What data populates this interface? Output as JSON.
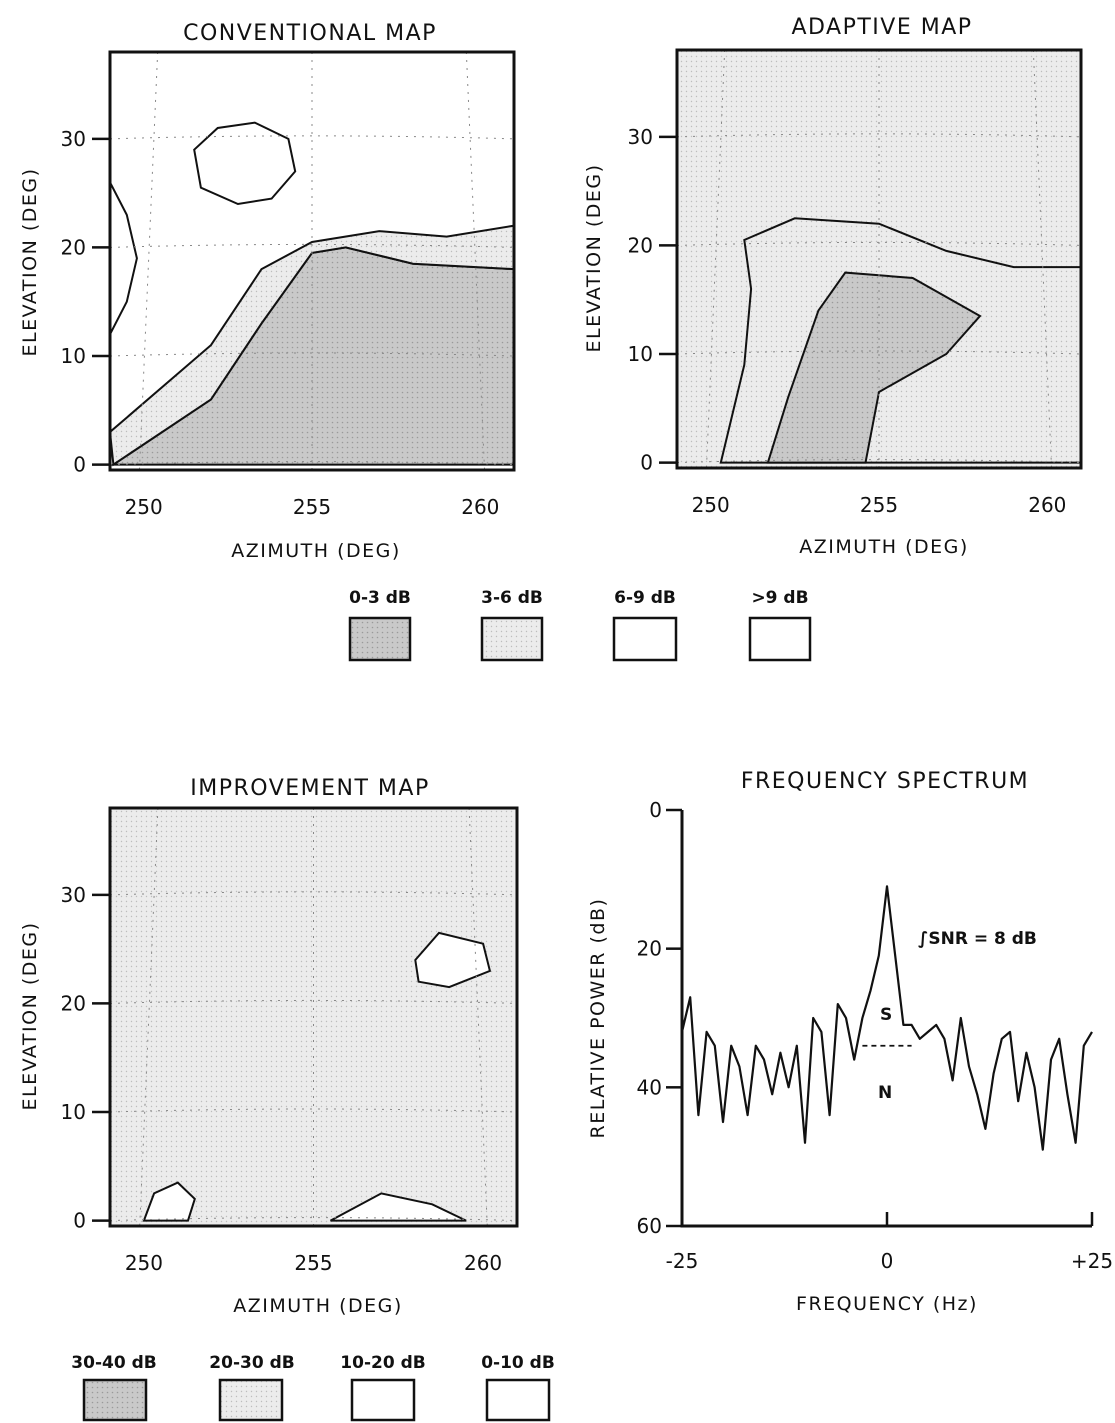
{
  "figure": {
    "top_legend": {
      "items": [
        {
          "label": "0-3 dB",
          "fill": "#c9c9c9"
        },
        {
          "label": "3-6 dB",
          "fill": "#ececec"
        },
        {
          "label": "6-9 dB",
          "fill": "#ffffff"
        },
        {
          "label": ">9 dB",
          "fill": "#ffffff"
        }
      ]
    },
    "bottom_legend": {
      "items": [
        {
          "label": "30-40 dB",
          "fill": "#c9c9c9"
        },
        {
          "label": "20-30 dB",
          "fill": "#ececec"
        },
        {
          "label": "10-20 dB",
          "fill": "#ffffff"
        },
        {
          "label": "0-10 dB",
          "fill": "#ffffff"
        }
      ]
    }
  },
  "chart_data": [
    {
      "type": "heatmap",
      "title": "CONVENTIONAL MAP",
      "xlabel": "AZIMUTH (DEG)",
      "ylabel": "ELEVATION (DEG)",
      "xlim": [
        249,
        261
      ],
      "ylim": [
        -0.5,
        38
      ],
      "xticks": [
        "250",
        "255",
        "260"
      ],
      "yticks": [
        "0",
        "10",
        "20",
        "30"
      ],
      "levels": [
        "0-3 dB",
        "3-6 dB",
        "6-9 dB",
        ">9 dB"
      ],
      "contours": [
        {
          "level": "0-3 dB",
          "boundary": [
            [
              249.1,
              0
            ],
            [
              252,
              6
            ],
            [
              253.5,
              13
            ],
            [
              255,
              19.5
            ],
            [
              256,
              20
            ],
            [
              258,
              18.5
            ],
            [
              261,
              18
            ],
            [
              261,
              0
            ]
          ]
        },
        {
          "level": "3-6 dB",
          "boundary": [
            [
              249,
              3
            ],
            [
              252,
              11
            ],
            [
              253.5,
              18
            ],
            [
              255,
              20.5
            ],
            [
              257,
              21.5
            ],
            [
              259,
              21
            ],
            [
              261,
              22
            ],
            [
              261,
              18
            ],
            [
              258,
              18.5
            ],
            [
              256,
              20
            ],
            [
              255,
              19.5
            ],
            [
              253.5,
              13
            ],
            [
              252,
              6
            ],
            [
              249.1,
              0
            ]
          ]
        },
        {
          "level": ">9 dB",
          "boundary": [
            [
              249,
              12
            ],
            [
              249.5,
              15
            ],
            [
              249.8,
              19
            ],
            [
              249.5,
              23
            ],
            [
              249,
              26
            ]
          ]
        },
        {
          "level": ">9 dB",
          "boundary": [
            [
              251.5,
              29
            ],
            [
              252.2,
              31
            ],
            [
              253.3,
              31.5
            ],
            [
              254.3,
              30
            ],
            [
              254.5,
              27
            ],
            [
              253.8,
              24.5
            ],
            [
              252.8,
              24
            ],
            [
              251.7,
              25.5
            ]
          ]
        }
      ]
    },
    {
      "type": "heatmap",
      "title": "ADAPTIVE MAP",
      "xlabel": "AZIMUTH (DEG)",
      "ylabel": "ELEVATION (DEG)",
      "xlim": [
        249,
        261
      ],
      "ylim": [
        -0.5,
        38
      ],
      "xticks": [
        "250",
        "255",
        "260"
      ],
      "yticks": [
        "0",
        "10",
        "20",
        "30"
      ],
      "levels": [
        "0-3 dB",
        "3-6 dB",
        "6-9 dB",
        ">9 dB"
      ],
      "contours": [
        {
          "level": "3-6 dB",
          "boundary": [
            [
              250.3,
              0
            ],
            [
              251,
              9
            ],
            [
              251.2,
              16
            ],
            [
              251,
              20.5
            ],
            [
              252.5,
              22.5
            ],
            [
              255,
              22
            ],
            [
              257,
              19.5
            ],
            [
              259,
              18
            ],
            [
              261,
              18
            ],
            [
              261,
              0
            ]
          ]
        },
        {
          "level": "0-3 dB",
          "boundary": [
            [
              251.7,
              0
            ],
            [
              252.3,
              6
            ],
            [
              253.2,
              14
            ],
            [
              254,
              17.5
            ],
            [
              256,
              17
            ],
            [
              258,
              13.5
            ],
            [
              257,
              10
            ],
            [
              255,
              6.5
            ],
            [
              254.6,
              0
            ]
          ]
        }
      ]
    },
    {
      "type": "heatmap",
      "title": "IMPROVEMENT MAP",
      "xlabel": "AZIMUTH (DEG)",
      "ylabel": "ELEVATION (DEG)",
      "xlim": [
        249,
        261
      ],
      "ylim": [
        -0.5,
        38
      ],
      "xticks": [
        "250",
        "255",
        "260"
      ],
      "yticks": [
        "0",
        "10",
        "20",
        "30"
      ],
      "levels": [
        "30-40 dB",
        "20-30 dB",
        "10-20 dB",
        "0-10 dB"
      ],
      "contours": [
        {
          "level": "0-10 dB",
          "boundary": [
            [
              250,
              0
            ],
            [
              250.3,
              2.5
            ],
            [
              251,
              3.5
            ],
            [
              251.5,
              2
            ],
            [
              251.3,
              0
            ]
          ]
        },
        {
          "level": "0-10 dB",
          "boundary": [
            [
              255.5,
              0
            ],
            [
              257,
              2.5
            ],
            [
              258.5,
              1.5
            ],
            [
              259.5,
              0
            ]
          ]
        },
        {
          "level": "0-10 dB",
          "boundary": [
            [
              258,
              24
            ],
            [
              258.7,
              26.5
            ],
            [
              260,
              25.5
            ],
            [
              260.2,
              23
            ],
            [
              259,
              21.5
            ],
            [
              258.1,
              22
            ]
          ]
        }
      ]
    },
    {
      "type": "line",
      "title": "FREQUENCY SPECTRUM",
      "xlabel": "FREQUENCY (Hz)",
      "ylabel": "RELATIVE POWER (dB)",
      "xlim": [
        -25,
        25
      ],
      "ylim": [
        60,
        0
      ],
      "xticks": [
        "-25",
        "0",
        "+25"
      ],
      "yticks": [
        "0",
        "20",
        "40",
        "60"
      ],
      "annotations": {
        "snr": "∫SNR = 8 dB",
        "signal": "S",
        "noise": "N"
      },
      "noise_floor_db": 34,
      "signal_band_hz": [
        -3,
        3
      ],
      "x": [
        -25,
        -24,
        -23,
        -22,
        -21,
        -20,
        -19,
        -18,
        -17,
        -16,
        -15,
        -14,
        -13,
        -12,
        -11,
        -10,
        -9,
        -8,
        -7,
        -6,
        -5,
        -4,
        -3,
        -2,
        -1,
        0,
        1,
        2,
        3,
        4,
        5,
        6,
        7,
        8,
        9,
        10,
        11,
        12,
        13,
        14,
        15,
        16,
        17,
        18,
        19,
        20,
        21,
        22,
        23,
        24,
        25
      ],
      "y": [
        32,
        27,
        44,
        32,
        34,
        45,
        34,
        37,
        44,
        34,
        36,
        41,
        35,
        40,
        34,
        48,
        30,
        32,
        44,
        28,
        30,
        36,
        30,
        26,
        21,
        11,
        21,
        31,
        31,
        33,
        32,
        31,
        33,
        39,
        30,
        37,
        41,
        46,
        38,
        33,
        32,
        42,
        35,
        40,
        49,
        36,
        33,
        41,
        48,
        34,
        32
      ]
    }
  ]
}
